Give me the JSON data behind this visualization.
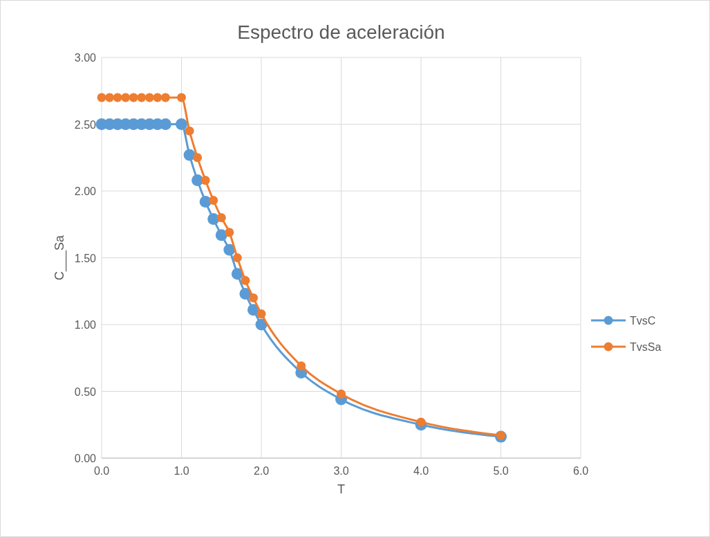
{
  "chart_data": {
    "type": "line",
    "title": "Espectro de aceleración",
    "xlabel": "T",
    "ylabel": "C___Sa",
    "x": [
      0,
      0.1,
      0.2,
      0.3,
      0.4,
      0.5,
      0.6,
      0.7,
      0.8,
      1.0,
      1.1,
      1.2,
      1.3,
      1.4,
      1.5,
      1.6,
      1.7,
      1.8,
      1.9,
      2.0,
      2.5,
      3.0,
      4.0,
      5.0
    ],
    "series": [
      {
        "name": "TvsC",
        "color": "#5b9bd5",
        "values": [
          2.5,
          2.5,
          2.5,
          2.5,
          2.5,
          2.5,
          2.5,
          2.5,
          2.5,
          2.5,
          2.27,
          2.08,
          1.92,
          1.79,
          1.67,
          1.56,
          1.38,
          1.23,
          1.11,
          1.0,
          0.64,
          0.44,
          0.25,
          0.16
        ]
      },
      {
        "name": "TvsSa",
        "color": "#ed7d31",
        "values": [
          2.7,
          2.7,
          2.7,
          2.7,
          2.7,
          2.7,
          2.7,
          2.7,
          2.7,
          2.7,
          2.45,
          2.25,
          2.08,
          1.93,
          1.8,
          1.69,
          1.5,
          1.33,
          1.2,
          1.08,
          0.69,
          0.48,
          0.27,
          0.17
        ]
      }
    ],
    "xlim": [
      0,
      6
    ],
    "xticks": [
      {
        "value": 0,
        "label": "0.0"
      },
      {
        "value": 1,
        "label": "1.0"
      },
      {
        "value": 2,
        "label": "2.0"
      },
      {
        "value": 3,
        "label": "3.0"
      },
      {
        "value": 4,
        "label": "4.0"
      },
      {
        "value": 5,
        "label": "5.0"
      },
      {
        "value": 6,
        "label": "6.0"
      }
    ],
    "ylim": [
      0,
      3
    ],
    "yticks": [
      {
        "value": 0,
        "label": "0.00"
      },
      {
        "value": 0.5,
        "label": "0.50"
      },
      {
        "value": 1,
        "label": "1.00"
      },
      {
        "value": 1.5,
        "label": "1.50"
      },
      {
        "value": 2,
        "label": "2.00"
      },
      {
        "value": 2.5,
        "label": "2.50"
      },
      {
        "value": 3,
        "label": "3.00"
      }
    ],
    "grid": true,
    "legend": "right",
    "marker": "circle",
    "line_style": "solid"
  }
}
